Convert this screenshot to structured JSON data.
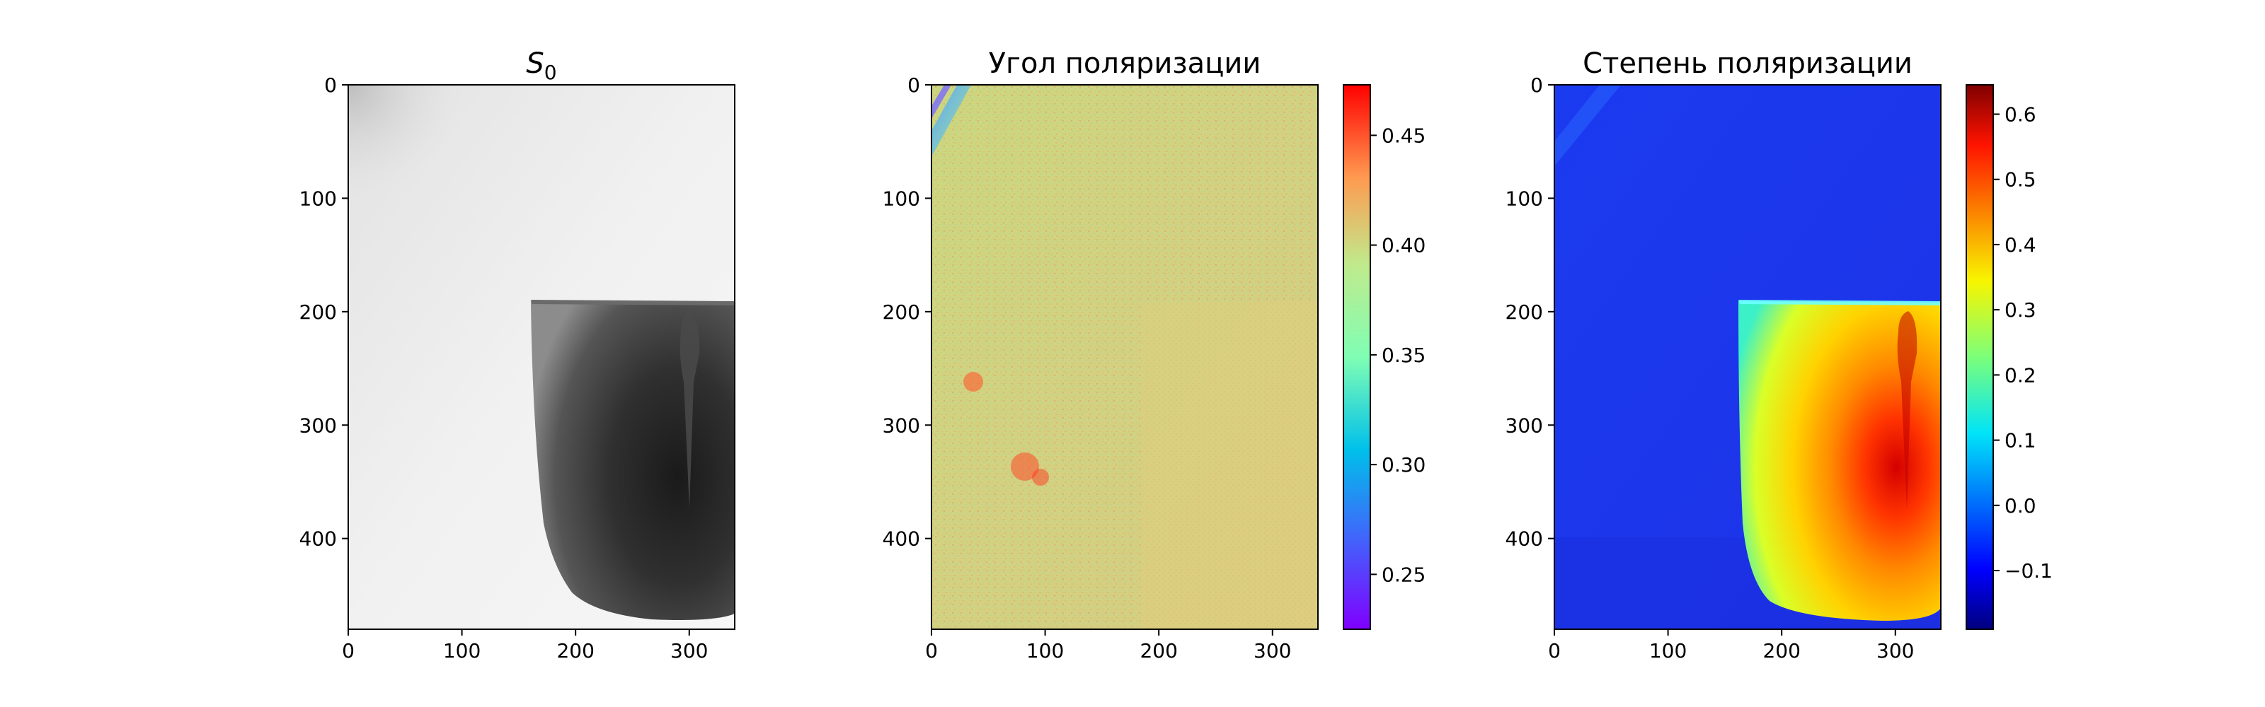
{
  "chart_data": [
    {
      "type": "heatmap",
      "title": "S",
      "title_subscript": "0",
      "colormap": "gray",
      "xlim": [
        0,
        340
      ],
      "ylim": [
        480,
        0
      ],
      "xticks": [
        0,
        100,
        200,
        300
      ],
      "yticks": [
        0,
        100,
        200,
        300,
        400
      ],
      "xtick_labels": [
        "0",
        "100",
        "200",
        "300"
      ],
      "ytick_labels": [
        "0",
        "100",
        "200",
        "300",
        "400"
      ],
      "colorbar": false
    },
    {
      "type": "heatmap",
      "title": "Угол поляризации",
      "colormap": "rainbow",
      "xlim": [
        0,
        340
      ],
      "ylim": [
        480,
        0
      ],
      "xticks": [
        0,
        100,
        200,
        300
      ],
      "yticks": [
        0,
        100,
        200,
        300,
        400
      ],
      "xtick_labels": [
        "0",
        "100",
        "200",
        "300"
      ],
      "ytick_labels": [
        "0",
        "100",
        "200",
        "300",
        "400"
      ],
      "colorbar": true,
      "colorbar_range": [
        0.225,
        0.473
      ],
      "colorbar_ticks": [
        0.25,
        0.3,
        0.35,
        0.4,
        0.45
      ],
      "colorbar_tick_labels": [
        "0.25",
        "0.30",
        "0.35",
        "0.40",
        "0.45"
      ]
    },
    {
      "type": "heatmap",
      "title": "Степень поляризации",
      "colormap": "jet",
      "xlim": [
        0,
        340
      ],
      "ylim": [
        480,
        0
      ],
      "xticks": [
        0,
        100,
        200,
        300
      ],
      "yticks": [
        0,
        100,
        200,
        300,
        400
      ],
      "xtick_labels": [
        "0",
        "100",
        "200",
        "300"
      ],
      "ytick_labels": [
        "0",
        "100",
        "200",
        "300",
        "400"
      ],
      "colorbar": true,
      "colorbar_range": [
        -0.19,
        0.645
      ],
      "colorbar_ticks": [
        -0.1,
        0.0,
        0.1,
        0.2,
        0.3,
        0.4,
        0.5,
        0.6
      ],
      "colorbar_tick_labels": [
        "−0.1",
        "0.0",
        "0.1",
        "0.2",
        "0.3",
        "0.4",
        "0.5",
        "0.6"
      ]
    }
  ]
}
